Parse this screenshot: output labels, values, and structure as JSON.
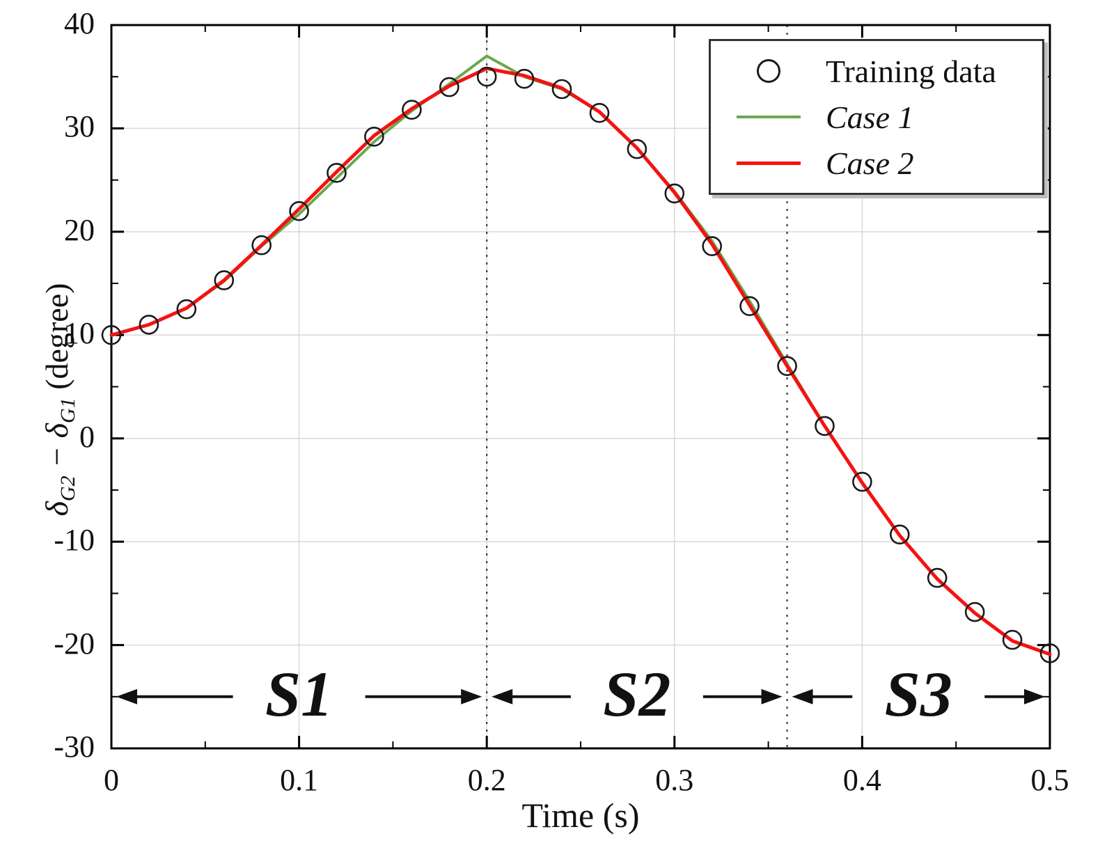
{
  "chart_data": {
    "type": "line",
    "title": "",
    "xlabel": "Time (s)",
    "ylabel": "δG2 − δG1 (degree)",
    "ylabel_parts": [
      "δ",
      "G2",
      " − ",
      "δ",
      "G1",
      " (degree)"
    ],
    "xlim": [
      0,
      0.5
    ],
    "ylim": [
      -30,
      40
    ],
    "xticks": [
      0,
      0.1,
      0.2,
      0.3,
      0.4,
      0.5
    ],
    "xtick_labels": [
      "0",
      "0.1",
      "0.2",
      "0.3",
      "0.4",
      "0.5"
    ],
    "xticks_minor": [
      0.05,
      0.15,
      0.25,
      0.35,
      0.45
    ],
    "yticks": [
      -30,
      -20,
      -10,
      0,
      10,
      20,
      30,
      40
    ],
    "ytick_labels": [
      "-30",
      "-20",
      "-10",
      "0",
      "10",
      "20",
      "30",
      "40"
    ],
    "yticks_minor": [
      -25,
      -15,
      -5,
      5,
      15,
      25,
      35
    ],
    "grid": true,
    "legend_position": "top-right",
    "scatter": {
      "name": "Training data",
      "marker": "circle",
      "color": "#1a1a1a",
      "x": [
        0,
        0.02,
        0.04,
        0.06,
        0.08,
        0.1,
        0.12,
        0.14,
        0.16,
        0.18,
        0.2,
        0.22,
        0.24,
        0.26,
        0.28,
        0.3,
        0.32,
        0.34,
        0.36,
        0.38,
        0.4,
        0.42,
        0.44,
        0.46,
        0.48,
        0.5
      ],
      "y": [
        10.0,
        11.0,
        12.5,
        15.3,
        18.7,
        22.0,
        25.7,
        29.2,
        31.8,
        34.0,
        35.0,
        34.8,
        33.8,
        31.5,
        28.0,
        23.7,
        18.6,
        12.8,
        7.0,
        1.2,
        -4.2,
        -9.3,
        -13.5,
        -16.8,
        -19.5,
        -20.8
      ]
    },
    "series": [
      {
        "name": "Case 1",
        "color": "#6aa84f",
        "width": 4,
        "x": [
          0,
          0.02,
          0.04,
          0.06,
          0.08,
          0.1,
          0.12,
          0.14,
          0.16,
          0.18,
          0.2,
          0.22,
          0.24,
          0.26,
          0.28,
          0.3,
          0.32,
          0.34,
          0.36,
          0.38,
          0.4,
          0.42,
          0.44,
          0.46,
          0.48,
          0.5
        ],
        "y": [
          10.0,
          11.0,
          12.6,
          15.2,
          18.6,
          21.7,
          25.2,
          28.7,
          31.7,
          34.3,
          37.0,
          35.0,
          33.8,
          31.6,
          28.1,
          23.9,
          19.1,
          13.3,
          7.2,
          1.2,
          -4.3,
          -9.4,
          -13.6,
          -16.9,
          -19.6,
          -20.9
        ]
      },
      {
        "name": "Case 2",
        "color": "#f51212",
        "width": 5,
        "x": [
          0,
          0.02,
          0.04,
          0.06,
          0.08,
          0.1,
          0.12,
          0.14,
          0.16,
          0.18,
          0.2,
          0.22,
          0.24,
          0.26,
          0.28,
          0.3,
          0.32,
          0.34,
          0.36,
          0.38,
          0.4,
          0.42,
          0.44,
          0.46,
          0.48,
          0.5
        ],
        "y": [
          10.0,
          11.0,
          12.6,
          15.3,
          18.7,
          22.2,
          25.8,
          29.3,
          31.9,
          34.1,
          35.8,
          35.1,
          33.9,
          31.6,
          28.1,
          23.8,
          18.8,
          12.9,
          7.0,
          1.2,
          -4.3,
          -9.4,
          -13.6,
          -16.9,
          -19.6,
          -20.9
        ]
      }
    ],
    "vlines": [
      0.2,
      0.36
    ],
    "segments": [
      {
        "label": "S1",
        "from": 0.0,
        "to": 0.2
      },
      {
        "label": "S2",
        "from": 0.2,
        "to": 0.36
      },
      {
        "label": "S3",
        "from": 0.36,
        "to": 0.5
      }
    ],
    "segment_y": -25,
    "styles": {
      "grid_color": "#d8d8d8",
      "axis_color": "#000000",
      "vline_color": "#3a3a3a",
      "arrow_color": "#111111"
    }
  }
}
